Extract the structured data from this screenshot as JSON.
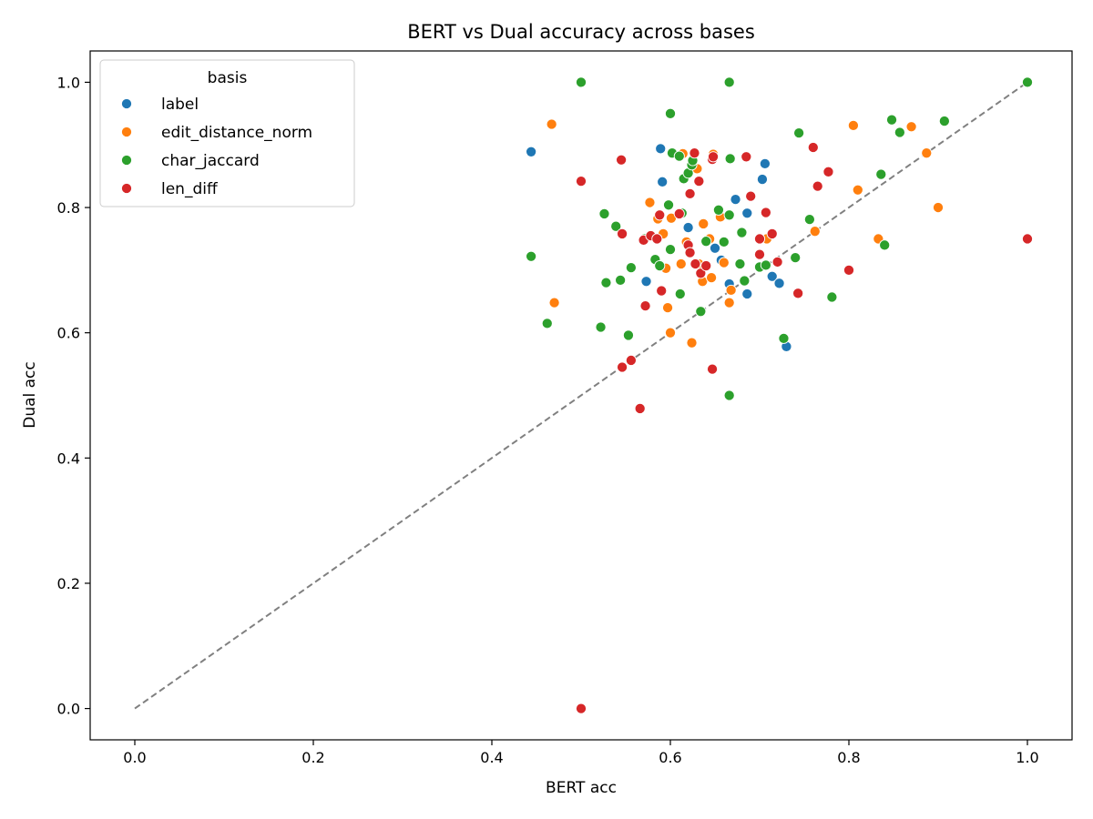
{
  "chart_data": {
    "type": "scatter",
    "title": "BERT vs Dual accuracy across bases",
    "xlabel": "BERT acc",
    "ylabel": "Dual acc",
    "xlim": [
      -0.05,
      1.05
    ],
    "ylim": [
      -0.05,
      1.05
    ],
    "xticks": [
      0.0,
      0.2,
      0.4,
      0.6,
      0.8,
      1.0
    ],
    "yticks": [
      0.0,
      0.2,
      0.4,
      0.6,
      0.8,
      1.0
    ],
    "xtick_labels": [
      "0.0",
      "0.2",
      "0.4",
      "0.6",
      "0.8",
      "1.0"
    ],
    "ytick_labels": [
      "0.0",
      "0.2",
      "0.4",
      "0.6",
      "0.8",
      "1.0"
    ],
    "grid": false,
    "reference_line": {
      "x": [
        0,
        1
      ],
      "y": [
        0,
        1
      ],
      "style": "dashed",
      "color": "#808080"
    },
    "legend": {
      "title": "basis",
      "position": "top-left"
    },
    "series": [
      {
        "name": "label",
        "color": "#1f77b4",
        "points": [
          [
            0.444,
            0.889
          ],
          [
            0.589,
            0.894
          ],
          [
            0.591,
            0.841
          ],
          [
            0.706,
            0.87
          ],
          [
            0.703,
            0.845
          ],
          [
            0.673,
            0.813
          ],
          [
            0.686,
            0.791
          ],
          [
            0.62,
            0.768
          ],
          [
            0.65,
            0.735
          ],
          [
            0.657,
            0.716
          ],
          [
            0.573,
            0.682
          ],
          [
            0.666,
            0.678
          ],
          [
            0.686,
            0.662
          ],
          [
            0.714,
            0.69
          ],
          [
            0.722,
            0.679
          ],
          [
            0.73,
            0.578
          ]
        ]
      },
      {
        "name": "edit_distance_norm",
        "color": "#ff7f0e",
        "points": [
          [
            0.467,
            0.933
          ],
          [
            0.47,
            0.648
          ],
          [
            0.577,
            0.808
          ],
          [
            0.586,
            0.782
          ],
          [
            0.592,
            0.758
          ],
          [
            0.595,
            0.703
          ],
          [
            0.597,
            0.64
          ],
          [
            0.6,
            0.6
          ],
          [
            0.601,
            0.783
          ],
          [
            0.612,
            0.71
          ],
          [
            0.614,
            0.886
          ],
          [
            0.618,
            0.745
          ],
          [
            0.624,
            0.584
          ],
          [
            0.63,
            0.862
          ],
          [
            0.632,
            0.71
          ],
          [
            0.636,
            0.682
          ],
          [
            0.637,
            0.774
          ],
          [
            0.644,
            0.75
          ],
          [
            0.646,
            0.688
          ],
          [
            0.648,
            0.885
          ],
          [
            0.656,
            0.785
          ],
          [
            0.66,
            0.712
          ],
          [
            0.666,
            0.648
          ],
          [
            0.668,
            0.668
          ],
          [
            0.708,
            0.75
          ],
          [
            0.762,
            0.762
          ],
          [
            0.805,
            0.931
          ],
          [
            0.81,
            0.828
          ],
          [
            0.833,
            0.75
          ],
          [
            0.87,
            0.929
          ],
          [
            0.887,
            0.887
          ],
          [
            0.9,
            0.8
          ]
        ]
      },
      {
        "name": "char_jaccard",
        "color": "#2ca02c",
        "points": [
          [
            0.444,
            0.722
          ],
          [
            0.462,
            0.615
          ],
          [
            0.5,
            1.0
          ],
          [
            0.522,
            0.609
          ],
          [
            0.526,
            0.79
          ],
          [
            0.528,
            0.68
          ],
          [
            0.539,
            0.77
          ],
          [
            0.544,
            0.684
          ],
          [
            0.553,
            0.596
          ],
          [
            0.556,
            0.704
          ],
          [
            0.571,
            0.75
          ],
          [
            0.583,
            0.717
          ],
          [
            0.588,
            0.707
          ],
          [
            0.598,
            0.804
          ],
          [
            0.6,
            0.95
          ],
          [
            0.6,
            0.733
          ],
          [
            0.602,
            0.887
          ],
          [
            0.61,
            0.882
          ],
          [
            0.611,
            0.662
          ],
          [
            0.613,
            0.791
          ],
          [
            0.615,
            0.846
          ],
          [
            0.62,
            0.855
          ],
          [
            0.624,
            0.868
          ],
          [
            0.625,
            0.875
          ],
          [
            0.634,
            0.634
          ],
          [
            0.64,
            0.746
          ],
          [
            0.654,
            0.796
          ],
          [
            0.66,
            0.745
          ],
          [
            0.666,
            1.0
          ],
          [
            0.666,
            0.5
          ],
          [
            0.666,
            0.788
          ],
          [
            0.667,
            0.878
          ],
          [
            0.678,
            0.71
          ],
          [
            0.68,
            0.76
          ],
          [
            0.683,
            0.683
          ],
          [
            0.7,
            0.705
          ],
          [
            0.707,
            0.708
          ],
          [
            0.727,
            0.591
          ],
          [
            0.74,
            0.72
          ],
          [
            0.744,
            0.919
          ],
          [
            0.756,
            0.781
          ],
          [
            0.781,
            0.657
          ],
          [
            0.836,
            0.853
          ],
          [
            0.84,
            0.74
          ],
          [
            0.848,
            0.94
          ],
          [
            0.857,
            0.92
          ],
          [
            0.907,
            0.938
          ],
          [
            1.0,
            1.0
          ]
        ]
      },
      {
        "name": "len_diff",
        "color": "#d62728",
        "points": [
          [
            0.5,
            0.842
          ],
          [
            0.5,
            0.0
          ],
          [
            0.545,
            0.876
          ],
          [
            0.546,
            0.758
          ],
          [
            0.546,
            0.545
          ],
          [
            0.556,
            0.556
          ],
          [
            0.566,
            0.479
          ],
          [
            0.57,
            0.748
          ],
          [
            0.572,
            0.643
          ],
          [
            0.578,
            0.755
          ],
          [
            0.585,
            0.75
          ],
          [
            0.588,
            0.788
          ],
          [
            0.59,
            0.667
          ],
          [
            0.61,
            0.79
          ],
          [
            0.62,
            0.74
          ],
          [
            0.622,
            0.822
          ],
          [
            0.622,
            0.728
          ],
          [
            0.627,
            0.887
          ],
          [
            0.628,
            0.71
          ],
          [
            0.632,
            0.842
          ],
          [
            0.634,
            0.695
          ],
          [
            0.64,
            0.707
          ],
          [
            0.647,
            0.542
          ],
          [
            0.647,
            0.877
          ],
          [
            0.648,
            0.881
          ],
          [
            0.685,
            0.881
          ],
          [
            0.69,
            0.818
          ],
          [
            0.7,
            0.75
          ],
          [
            0.7,
            0.725
          ],
          [
            0.707,
            0.792
          ],
          [
            0.714,
            0.758
          ],
          [
            0.72,
            0.713
          ],
          [
            0.743,
            0.663
          ],
          [
            0.76,
            0.896
          ],
          [
            0.765,
            0.834
          ],
          [
            0.777,
            0.857
          ],
          [
            0.8,
            0.7
          ],
          [
            1.0,
            0.75
          ]
        ]
      }
    ]
  }
}
